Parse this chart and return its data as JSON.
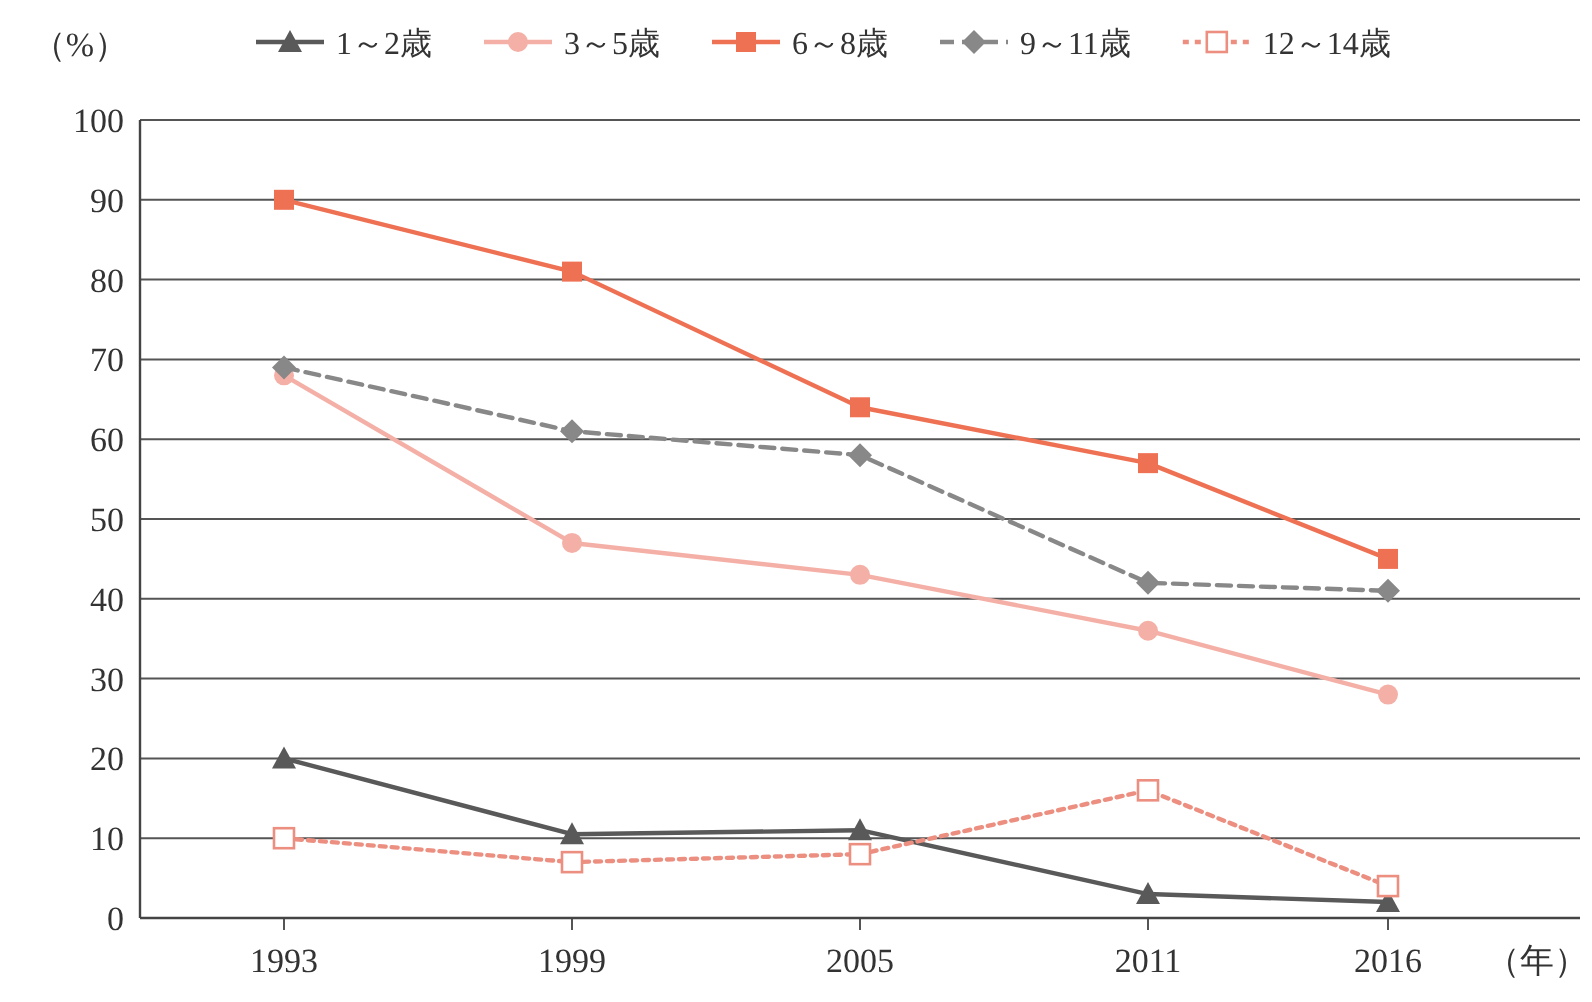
{
  "chart_data": {
    "type": "line",
    "xlabel": "（年）",
    "ylabel": "（%）",
    "x": [
      1993,
      1999,
      2005,
      2011,
      2016
    ],
    "xlim": [
      1990,
      2020
    ],
    "xticks": [
      1993,
      1999,
      2005,
      2011,
      2016
    ],
    "ylim": [
      0,
      100
    ],
    "yticks": [
      0,
      10,
      20,
      30,
      40,
      50,
      60,
      70,
      80,
      90,
      100
    ],
    "grid": "y",
    "legend": "top",
    "series": [
      {
        "name": "1～2歳",
        "color": "#595959",
        "marker": "triangle",
        "line_style": "solid",
        "values": [
          20,
          10.5,
          11,
          3,
          2
        ]
      },
      {
        "name": "3～5歳",
        "color": "#f4b0a6",
        "marker": "circle",
        "line_style": "solid",
        "values": [
          68,
          47,
          43,
          36,
          28
        ]
      },
      {
        "name": "6～8歳",
        "color": "#ef7154",
        "marker": "square",
        "line_style": "solid",
        "values": [
          90,
          81,
          64,
          57,
          45
        ]
      },
      {
        "name": "9～11歳",
        "color": "#888888",
        "marker": "diamond",
        "line_style": "dashed",
        "values": [
          69,
          61,
          58,
          42,
          41
        ]
      },
      {
        "name": "12～14歳",
        "color": "#ec8f80",
        "marker": "square_open",
        "line_style": "dotted",
        "values": [
          10,
          7,
          8,
          16,
          4
        ]
      }
    ]
  }
}
